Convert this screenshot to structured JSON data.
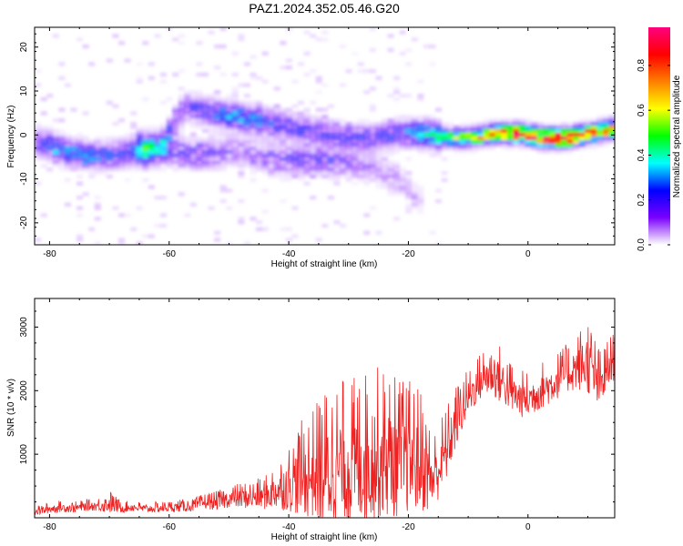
{
  "figure": {
    "title": "PAZ1.2024.352.05.46.G20"
  },
  "chart_data": [
    {
      "type": "heatmap",
      "title": "PAZ1.2024.352.05.46.G20",
      "xlabel": "Height of straight line (km)",
      "ylabel": "Frequency (Hz)",
      "xlim": [
        -82.5,
        14.5
      ],
      "ylim": [
        -25,
        24.5
      ],
      "xticks": [
        -80,
        -60,
        -40,
        -20,
        0
      ],
      "xtick_labels": [
        "-80",
        "-60",
        "-40",
        "-20",
        "0"
      ],
      "yticks": [
        -20,
        -10,
        0,
        10,
        20
      ],
      "ytick_labels": [
        "-20",
        "-10",
        "0",
        "10",
        "20"
      ],
      "colorbar": {
        "label": "Normalized spectral amplitude",
        "range": [
          0,
          0.97
        ],
        "ticks": [
          0.0,
          0.2,
          0.4,
          0.6,
          0.8
        ],
        "tick_labels": [
          "0.0",
          "0.2",
          "0.4",
          "0.6",
          "0.8"
        ],
        "colormap": [
          "#ffffff",
          "#7a00ff",
          "#0000ff",
          "#00ffff",
          "#00ff00",
          "#ffff00",
          "#ff7f00",
          "#ff0000",
          "#ff007f"
        ]
      },
      "ridge": {
        "description": "dominant spectral ridge (frequency vs height)",
        "x": [
          -82,
          -78,
          -74,
          -70,
          -66,
          -62,
          -58,
          -54,
          -50,
          -46,
          -42,
          -38,
          -34,
          -30,
          -26,
          -22,
          -18,
          -14,
          -10,
          -6,
          -2,
          2,
          6,
          10,
          14
        ],
        "frequency": [
          -2,
          -4,
          -5,
          -5,
          -4,
          -3,
          6,
          5,
          4,
          3,
          2,
          1,
          0,
          -1,
          -1,
          0,
          0,
          -1,
          -1,
          0,
          0,
          -1,
          -1,
          0,
          1
        ],
        "amplitude": [
          0.25,
          0.3,
          0.3,
          0.25,
          0.25,
          0.25,
          0.2,
          0.25,
          0.3,
          0.3,
          0.25,
          0.2,
          0.2,
          0.2,
          0.2,
          0.25,
          0.35,
          0.5,
          0.6,
          0.75,
          0.9,
          0.9,
          0.95,
          0.8,
          0.7
        ]
      },
      "secondary_branch": {
        "x": [
          -66,
          -60,
          -56,
          -50,
          -46,
          -42,
          -38,
          -34,
          -30,
          -26,
          -22,
          -18
        ],
        "frequency": [
          -3,
          -4,
          -5,
          -4,
          -5,
          -6,
          -6,
          -6,
          -7,
          -8,
          -11,
          -16
        ],
        "amplitude": [
          0.25,
          0.2,
          0.2,
          0.15,
          0.15,
          0.2,
          0.2,
          0.2,
          0.15,
          0.12,
          0.1,
          0.05
        ]
      }
    },
    {
      "type": "line",
      "title": "",
      "xlabel": "Height of straight line (km)",
      "ylabel": "SNR (10 * v/v)",
      "xlim": [
        -82.5,
        14.5
      ],
      "ylim": [
        0,
        3450
      ],
      "xticks": [
        -80,
        -60,
        -40,
        -20,
        0
      ],
      "xtick_labels": [
        "-80",
        "-60",
        "-40",
        "-20",
        "0"
      ],
      "yticks": [
        1000,
        2000,
        3000
      ],
      "ytick_labels": [
        "1000",
        "2000",
        "3000"
      ],
      "line_color": "#ee2020",
      "series": [
        {
          "name": "",
          "x": [
            -82,
            -80,
            -78,
            -76,
            -74,
            -72,
            -70,
            -68,
            -66,
            -64,
            -62,
            -60,
            -58,
            -56,
            -54,
            -52,
            -50,
            -48,
            -46,
            -44,
            -42,
            -40,
            -38,
            -36,
            -34,
            -32,
            -30,
            -28,
            -26,
            -24,
            -22,
            -20,
            -18,
            -16,
            -14,
            -12,
            -10,
            -8,
            -6,
            -4,
            -2,
            0,
            2,
            4,
            6,
            8,
            10,
            12,
            14
          ],
          "mean": [
            100,
            140,
            160,
            150,
            180,
            190,
            220,
            150,
            170,
            140,
            150,
            160,
            170,
            180,
            240,
            240,
            300,
            310,
            320,
            340,
            430,
            520,
            620,
            680,
            700,
            760,
            790,
            840,
            920,
            940,
            900,
            920,
            870,
            600,
            950,
            1500,
            1900,
            2150,
            2300,
            2100,
            1900,
            1850,
            2000,
            2100,
            2250,
            2350,
            2450,
            2050,
            2450
          ],
          "amplitude": [
            60,
            70,
            70,
            70,
            70,
            80,
            150,
            70,
            70,
            60,
            70,
            70,
            80,
            80,
            100,
            120,
            140,
            160,
            180,
            210,
            300,
            420,
            600,
            700,
            900,
            950,
            950,
            950,
            1000,
            950,
            900,
            850,
            800,
            500,
            500,
            400,
            300,
            300,
            400,
            350,
            300,
            300,
            300,
            300,
            300,
            350,
            500,
            400,
            300
          ]
        }
      ]
    }
  ]
}
